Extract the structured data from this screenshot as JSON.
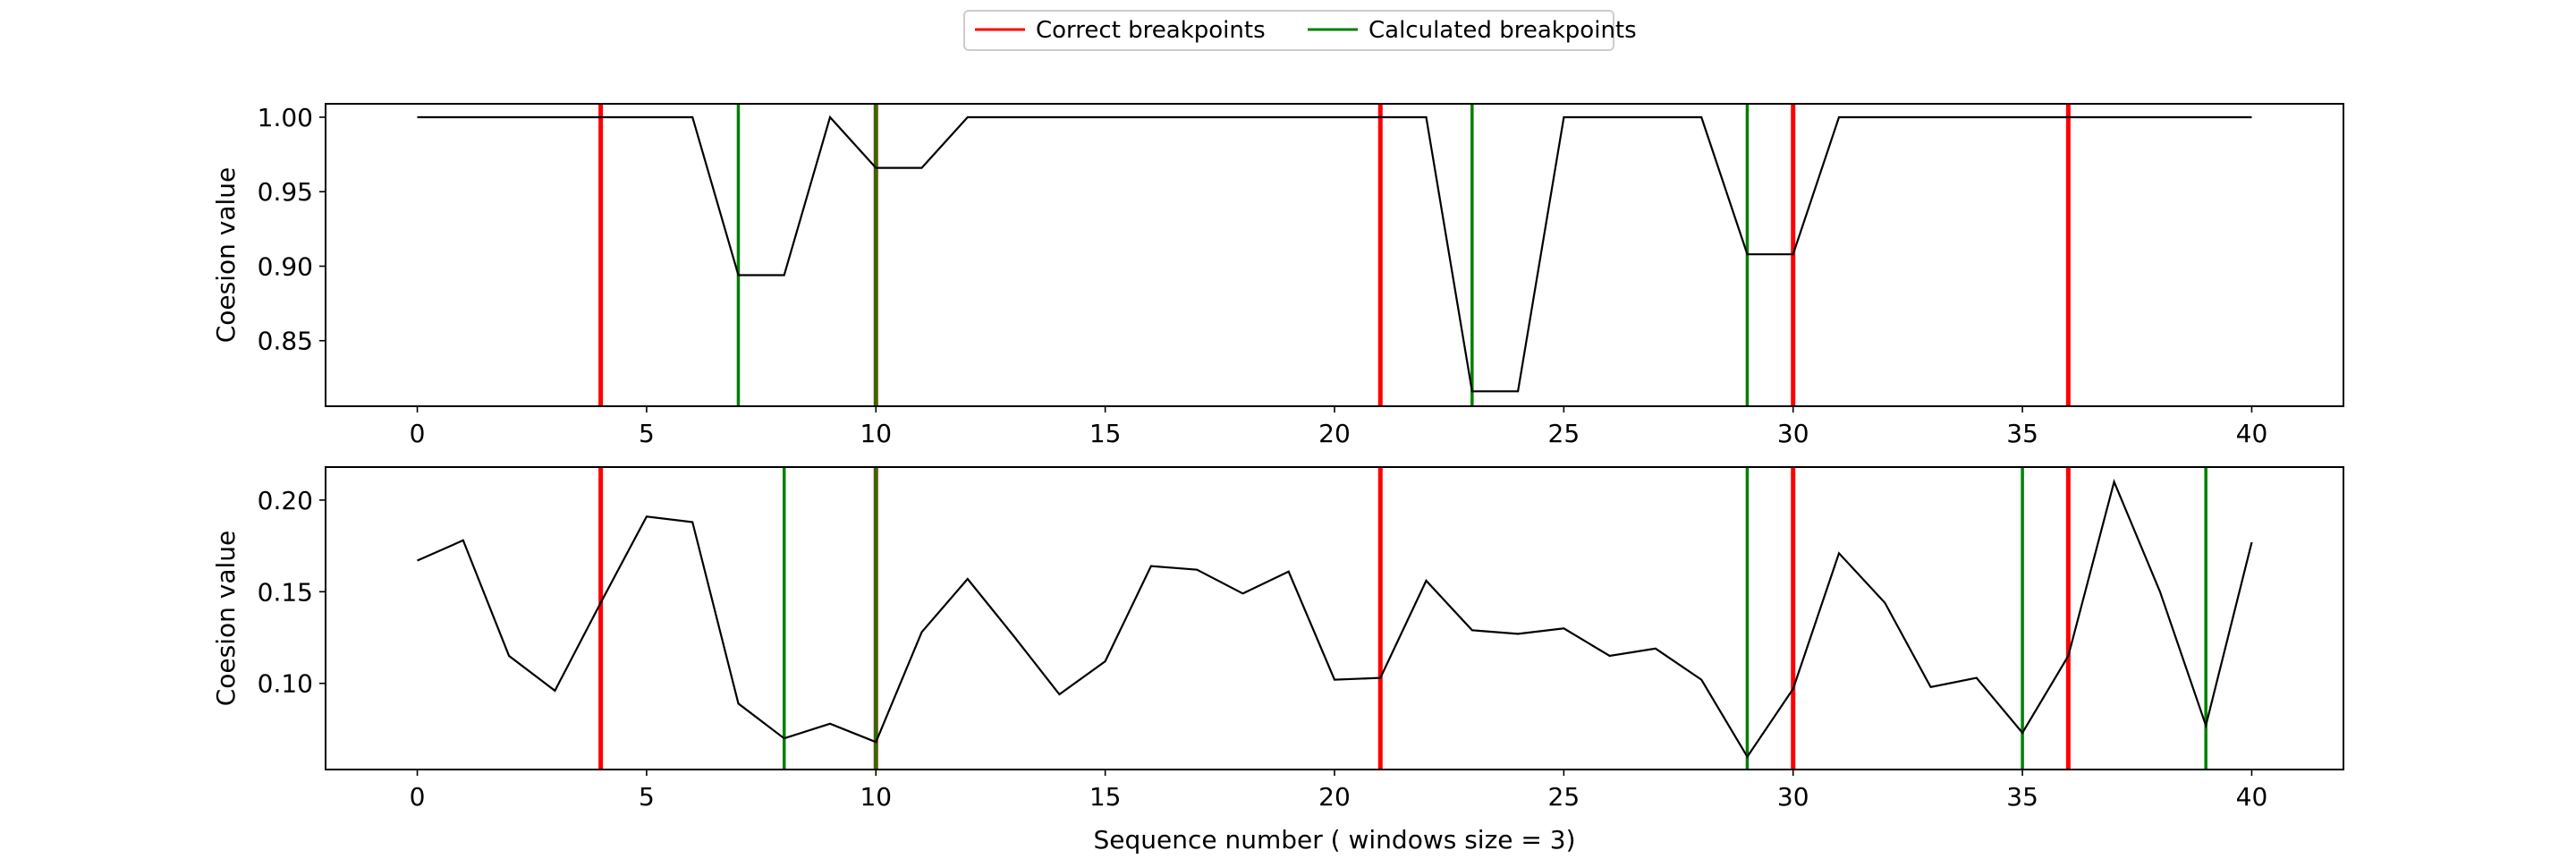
{
  "legend": {
    "location": "upper-center",
    "items": [
      {
        "label": "Correct breakpoints",
        "color": "#ff0000"
      },
      {
        "label": "Calculated breakpoints",
        "color": "#008000"
      }
    ]
  },
  "chart_data": [
    {
      "type": "line",
      "ylabel": "Coesion value",
      "xlabel": "",
      "xlim": [
        -2,
        42
      ],
      "ylim": [
        0.806,
        1.009
      ],
      "xticks": [
        0,
        5,
        10,
        15,
        20,
        25,
        30,
        35,
        40
      ],
      "yticks": [
        0.85,
        0.9,
        0.95,
        1.0
      ],
      "ytick_labels": [
        "0.85",
        "0.90",
        "0.95",
        "1.00"
      ],
      "x": [
        0,
        1,
        2,
        3,
        4,
        5,
        6,
        7,
        8,
        9,
        10,
        11,
        12,
        13,
        14,
        15,
        16,
        17,
        18,
        19,
        20,
        21,
        22,
        23,
        24,
        25,
        26,
        27,
        28,
        29,
        30,
        31,
        32,
        33,
        34,
        35,
        36,
        37,
        38,
        39,
        40
      ],
      "series": [
        {
          "color": "#000000",
          "values": [
            1.0,
            1.0,
            1.0,
            1.0,
            1.0,
            1.0,
            1.0,
            0.894,
            0.894,
            1.0,
            0.966,
            0.966,
            1.0,
            1.0,
            1.0,
            1.0,
            1.0,
            1.0,
            1.0,
            1.0,
            1.0,
            1.0,
            1.0,
            0.816,
            0.816,
            1.0,
            1.0,
            1.0,
            1.0,
            0.908,
            0.908,
            1.0,
            1.0,
            1.0,
            1.0,
            1.0,
            1.0,
            1.0,
            1.0,
            1.0,
            1.0
          ]
        }
      ],
      "correct_breakpoints": [
        4,
        10,
        21,
        30,
        36
      ],
      "calculated_breakpoints": [
        7,
        10,
        23,
        29
      ]
    },
    {
      "type": "line",
      "ylabel": "Coesion value",
      "xlabel": "Sequence number ( windows size = 3)",
      "xlim": [
        -2,
        42
      ],
      "ylim": [
        0.053,
        0.218
      ],
      "xticks": [
        0,
        5,
        10,
        15,
        20,
        25,
        30,
        35,
        40
      ],
      "yticks": [
        0.1,
        0.15,
        0.2
      ],
      "ytick_labels": [
        "0.10",
        "0.15",
        "0.20"
      ],
      "x": [
        0,
        1,
        2,
        3,
        4,
        5,
        6,
        7,
        8,
        9,
        10,
        11,
        12,
        13,
        14,
        15,
        16,
        17,
        18,
        19,
        20,
        21,
        22,
        23,
        24,
        25,
        26,
        27,
        28,
        29,
        30,
        31,
        32,
        33,
        34,
        35,
        36,
        37,
        38,
        39,
        40
      ],
      "series": [
        {
          "color": "#000000",
          "values": [
            0.167,
            0.178,
            0.115,
            0.096,
            0.144,
            0.191,
            0.188,
            0.089,
            0.07,
            0.078,
            0.068,
            0.128,
            0.157,
            0.126,
            0.094,
            0.112,
            0.164,
            0.162,
            0.149,
            0.161,
            0.102,
            0.103,
            0.156,
            0.129,
            0.127,
            0.13,
            0.115,
            0.119,
            0.102,
            0.06,
            0.097,
            0.171,
            0.144,
            0.098,
            0.103,
            0.073,
            0.115,
            0.21,
            0.15,
            0.077,
            0.177
          ]
        }
      ],
      "correct_breakpoints": [
        4,
        10,
        21,
        30,
        36
      ],
      "calculated_breakpoints": [
        8,
        10,
        29,
        35,
        39
      ]
    }
  ]
}
